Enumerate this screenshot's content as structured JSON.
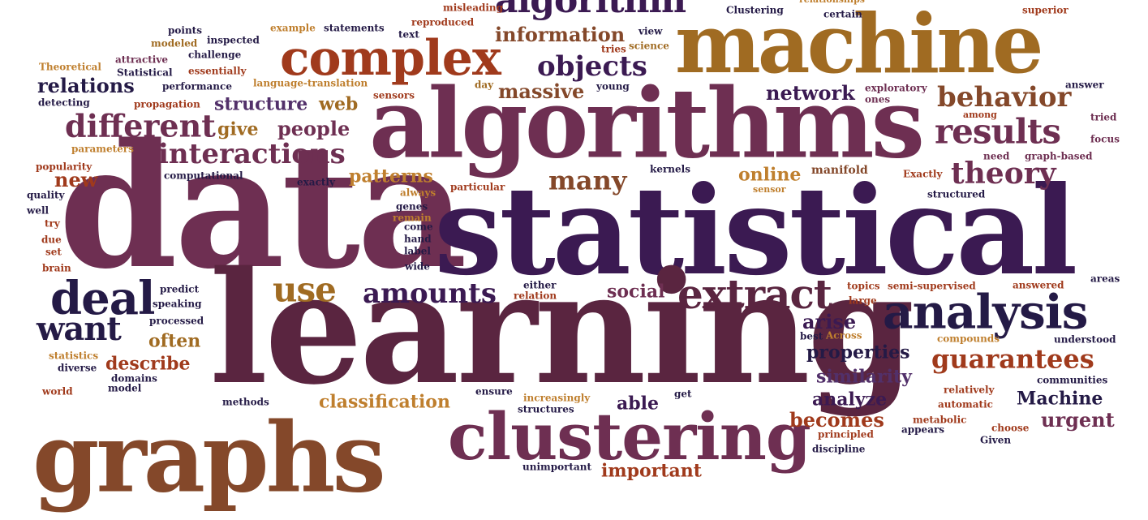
{
  "words": [
    {
      "id": "data",
      "text": "data",
      "color": "pl"
    },
    {
      "id": "statistical",
      "text": "statistical",
      "color": "pd"
    },
    {
      "id": "learning",
      "text": "learning",
      "color": "mr"
    },
    {
      "id": "algorithms",
      "text": "algorithms",
      "color": "pl"
    },
    {
      "id": "machine",
      "text": "machine",
      "color": "ok"
    },
    {
      "id": "graphs",
      "text": "graphs",
      "color": "br"
    },
    {
      "id": "clustering",
      "text": "clustering",
      "color": "pl"
    },
    {
      "id": "analysis",
      "text": "analysis",
      "color": "nv"
    },
    {
      "id": "complex",
      "text": "complex",
      "color": "rd"
    },
    {
      "id": "extract",
      "text": "extract",
      "color": "mr"
    },
    {
      "id": "deal",
      "text": "deal",
      "color": "nv"
    },
    {
      "id": "algorithm",
      "text": "algorithm",
      "color": "pd"
    },
    {
      "id": "objects",
      "text": "objects",
      "color": "pd"
    },
    {
      "id": "different",
      "text": "different",
      "color": "pl"
    },
    {
      "id": "interactions",
      "text": "interactions",
      "color": "pl"
    },
    {
      "id": "results",
      "text": "results",
      "color": "pl"
    },
    {
      "id": "behavior",
      "text": "behavior",
      "color": "br"
    },
    {
      "id": "theory",
      "text": "theory",
      "color": "pl"
    },
    {
      "id": "use",
      "text": "use",
      "color": "ok"
    },
    {
      "id": "amounts",
      "text": "amounts",
      "color": "pd"
    },
    {
      "id": "want",
      "text": "want",
      "color": "nv"
    },
    {
      "id": "guarantees",
      "text": "guarantees",
      "color": "rd"
    },
    {
      "id": "information",
      "text": "information",
      "color": "br"
    },
    {
      "id": "massive",
      "text": "massive",
      "color": "br"
    },
    {
      "id": "many",
      "text": "many",
      "color": "br"
    },
    {
      "id": "network",
      "text": "network",
      "color": "pd"
    },
    {
      "id": "relations",
      "text": "relations",
      "color": "nv"
    },
    {
      "id": "structure",
      "text": "structure",
      "color": "vl"
    },
    {
      "id": "people",
      "text": "people",
      "color": "pl"
    },
    {
      "id": "new",
      "text": "new",
      "color": "rd"
    },
    {
      "id": "give",
      "text": "give",
      "color": "ok"
    },
    {
      "id": "web",
      "text": "web",
      "color": "ok"
    },
    {
      "id": "patterns",
      "text": "patterns",
      "color": "gd"
    },
    {
      "id": "online",
      "text": "online",
      "color": "gd"
    },
    {
      "id": "arise",
      "text": "arise",
      "color": "pd"
    },
    {
      "id": "properties",
      "text": "properties",
      "color": "nv"
    },
    {
      "id": "similarity",
      "text": "similarity",
      "color": "vl"
    },
    {
      "id": "analyze",
      "text": "analyze",
      "color": "pd"
    },
    {
      "id": "Machine",
      "text": "Machine",
      "color": "nv"
    },
    {
      "id": "urgent",
      "text": "urgent",
      "color": "pl"
    },
    {
      "id": "becomes",
      "text": "becomes",
      "color": "rd"
    },
    {
      "id": "classification",
      "text": "classification",
      "color": "gd"
    },
    {
      "id": "important",
      "text": "important",
      "color": "rd"
    },
    {
      "id": "able",
      "text": "able",
      "color": "pd"
    },
    {
      "id": "social",
      "text": "social",
      "color": "pl"
    },
    {
      "id": "often",
      "text": "often",
      "color": "ok"
    },
    {
      "id": "describe",
      "text": "describe",
      "color": "rd"
    },
    {
      "id": "sensor",
      "text": "sensor",
      "color": "gd"
    },
    {
      "id": "exploratory",
      "text": "exploratory",
      "color": "pl"
    },
    {
      "id": "ones",
      "text": "ones",
      "color": "pl"
    },
    {
      "id": "answer",
      "text": "answer",
      "color": "nv"
    },
    {
      "id": "tried",
      "text": "tried",
      "color": "pl"
    },
    {
      "id": "focus",
      "text": "focus",
      "color": "pl"
    },
    {
      "id": "need",
      "text": "need",
      "color": "pl"
    },
    {
      "id": "graph-based",
      "text": "graph-based",
      "color": "pl"
    },
    {
      "id": "Exactly",
      "text": "Exactly",
      "color": "rd"
    },
    {
      "id": "manifold",
      "text": "manifold",
      "color": "br"
    },
    {
      "id": "structured",
      "text": "structured",
      "color": "nv"
    },
    {
      "id": "kernels",
      "text": "kernels",
      "color": "nv"
    },
    {
      "id": "misleading",
      "text": "misleading",
      "color": "rd"
    },
    {
      "id": "reproduced",
      "text": "reproduced",
      "color": "rd"
    },
    {
      "id": "text",
      "text": "text",
      "color": "nv"
    },
    {
      "id": "view",
      "text": "view",
      "color": "nv"
    },
    {
      "id": "tries",
      "text": "tries",
      "color": "rd"
    },
    {
      "id": "science",
      "text": "science",
      "color": "ok"
    },
    {
      "id": "day",
      "text": "day",
      "color": "ok"
    },
    {
      "id": "young",
      "text": "young",
      "color": "nv"
    },
    {
      "id": "Clustering",
      "text": "Clustering",
      "color": "nv"
    },
    {
      "id": "relationships",
      "text": "relationships",
      "color": "gd"
    },
    {
      "id": "certain",
      "text": "certain",
      "color": "nv"
    },
    {
      "id": "superior",
      "text": "superior",
      "color": "rd"
    },
    {
      "id": "points",
      "text": "points",
      "color": "nv"
    },
    {
      "id": "example",
      "text": "example",
      "color": "gd"
    },
    {
      "id": "statements",
      "text": "statements",
      "color": "nv"
    },
    {
      "id": "modeled",
      "text": "modeled",
      "color": "ok"
    },
    {
      "id": "inspected",
      "text": "inspected",
      "color": "nv"
    },
    {
      "id": "Theoretical",
      "text": "Theoretical",
      "color": "gd"
    },
    {
      "id": "attractive",
      "text": "attractive",
      "color": "pl"
    },
    {
      "id": "challenge",
      "text": "challenge",
      "color": "nv"
    },
    {
      "id": "Statistical",
      "text": "Statistical",
      "color": "nv"
    },
    {
      "id": "essentially",
      "text": "essentially",
      "color": "rd"
    },
    {
      "id": "performance",
      "text": "performance",
      "color": "nv"
    },
    {
      "id": "language-translation",
      "text": "language-translation",
      "color": "gd"
    },
    {
      "id": "detecting",
      "text": "detecting",
      "color": "nv"
    },
    {
      "id": "propagation",
      "text": "propagation",
      "color": "rd"
    },
    {
      "id": "sensors",
      "text": "sensors",
      "color": "rd"
    },
    {
      "id": "parameters",
      "text": "parameters",
      "color": "gd"
    },
    {
      "id": "popularity",
      "text": "popularity",
      "color": "rd"
    },
    {
      "id": "computational",
      "text": "computational",
      "color": "nv"
    },
    {
      "id": "exactly",
      "text": "exactly",
      "color": "nv"
    },
    {
      "id": "quality",
      "text": "quality",
      "color": "nv"
    },
    {
      "id": "always",
      "text": "always",
      "color": "gd"
    },
    {
      "id": "particular",
      "text": "particular",
      "color": "rd"
    },
    {
      "id": "well",
      "text": "well",
      "color": "nv"
    },
    {
      "id": "genes",
      "text": "genes",
      "color": "nv"
    },
    {
      "id": "remain",
      "text": "remain",
      "color": "gd"
    },
    {
      "id": "come",
      "text": "come",
      "color": "nv"
    },
    {
      "id": "hand",
      "text": "hand",
      "color": "nv"
    },
    {
      "id": "label",
      "text": "label",
      "color": "nv"
    },
    {
      "id": "wide",
      "text": "wide",
      "color": "nv"
    },
    {
      "id": "try",
      "text": "try",
      "color": "rd"
    },
    {
      "id": "due",
      "text": "due",
      "color": "rd"
    },
    {
      "id": "set",
      "text": "set",
      "color": "rd"
    },
    {
      "id": "brain",
      "text": "brain",
      "color": "rd"
    },
    {
      "id": "predict",
      "text": "predict",
      "color": "nv"
    },
    {
      "id": "speaking",
      "text": "speaking",
      "color": "nv"
    },
    {
      "id": "processed",
      "text": "processed",
      "color": "nv"
    },
    {
      "id": "either",
      "text": "either",
      "color": "nv"
    },
    {
      "id": "relation",
      "text": "relation",
      "color": "rd"
    },
    {
      "id": "statistics",
      "text": "statistics",
      "color": "gd"
    },
    {
      "id": "diverse",
      "text": "diverse",
      "color": "nv"
    },
    {
      "id": "domains",
      "text": "domains",
      "color": "nv"
    },
    {
      "id": "world",
      "text": "world",
      "color": "rd"
    },
    {
      "id": "model",
      "text": "model",
      "color": "nv"
    },
    {
      "id": "methods",
      "text": "methods",
      "color": "nv"
    },
    {
      "id": "ensure",
      "text": "ensure",
      "color": "nv"
    },
    {
      "id": "increasingly",
      "text": "increasingly",
      "color": "gd"
    },
    {
      "id": "get",
      "text": "get",
      "color": "nv"
    },
    {
      "id": "structures",
      "text": "structures",
      "color": "nv"
    },
    {
      "id": "unimportant",
      "text": "unimportant",
      "color": "nv"
    },
    {
      "id": "topics",
      "text": "topics",
      "color": "rd"
    },
    {
      "id": "large",
      "text": "large",
      "color": "rd"
    },
    {
      "id": "semi-supervised",
      "text": "semi-supervised",
      "color": "rd"
    },
    {
      "id": "answered",
      "text": "answered",
      "color": "rd"
    },
    {
      "id": "areas",
      "text": "areas",
      "color": "nv"
    },
    {
      "id": "best",
      "text": "best",
      "color": "nv"
    },
    {
      "id": "Across",
      "text": "Across",
      "color": "gd"
    },
    {
      "id": "compounds",
      "text": "compounds",
      "color": "gd"
    },
    {
      "id": "understood",
      "text": "understood",
      "color": "nv"
    },
    {
      "id": "communities",
      "text": "communities",
      "color": "nv"
    },
    {
      "id": "relatively",
      "text": "relatively",
      "color": "rd"
    },
    {
      "id": "automatic",
      "text": "automatic",
      "color": "rd"
    },
    {
      "id": "metabolic",
      "text": "metabolic",
      "color": "rd"
    },
    {
      "id": "principled",
      "text": "principled",
      "color": "rd"
    },
    {
      "id": "appears",
      "text": "appears",
      "color": "nv"
    },
    {
      "id": "choose",
      "text": "choose",
      "color": "rd"
    },
    {
      "id": "Given",
      "text": "Given",
      "color": "nv"
    },
    {
      "id": "discipline",
      "text": "discipline",
      "color": "nv"
    },
    {
      "id": "among",
      "text": "among",
      "color": "rd"
    }
  ]
}
